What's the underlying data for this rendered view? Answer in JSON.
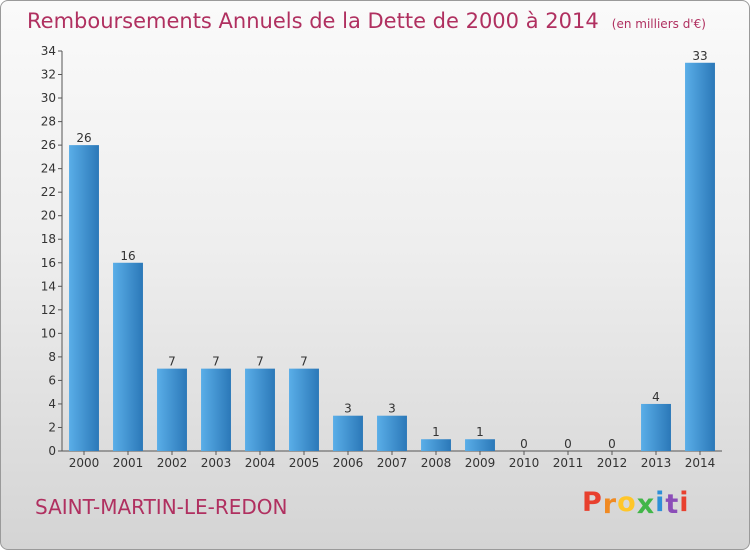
{
  "chart_data": {
    "type": "bar",
    "title": "Remboursements Annuels de la Dette de 2000 à 2014",
    "subtitle": "(en milliers d'€)",
    "categories": [
      "2000",
      "2001",
      "2002",
      "2003",
      "2004",
      "2005",
      "2006",
      "2007",
      "2008",
      "2009",
      "2010",
      "2011",
      "2012",
      "2013",
      "2014"
    ],
    "values": [
      26,
      16,
      7,
      7,
      7,
      7,
      3,
      3,
      1,
      1,
      0,
      0,
      0,
      4,
      33
    ],
    "ylim": [
      0,
      34
    ],
    "yticks": [
      0,
      2,
      4,
      6,
      8,
      10,
      12,
      14,
      16,
      18,
      20,
      22,
      24,
      26,
      28,
      30,
      32,
      34
    ],
    "grid": false,
    "bar_color": "#3d8fd0",
    "xlabel": "",
    "ylabel": ""
  },
  "commune": "SAINT-MARTIN-LE-REDON",
  "logo": {
    "text": "Proxiti",
    "letter_colors": [
      "#e8402e",
      "#f08a22",
      "#ffc629",
      "#41b648",
      "#2e8fd8",
      "#8b4db8",
      "#e8402e"
    ]
  }
}
